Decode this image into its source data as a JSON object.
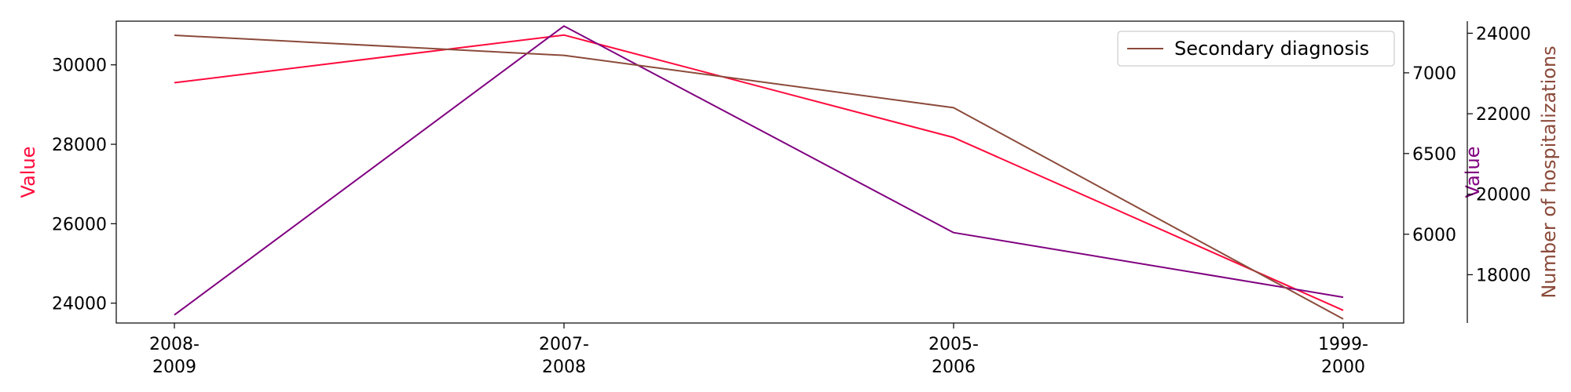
{
  "chart_data": {
    "type": "line",
    "categories": [
      [
        "2008-",
        "2009"
      ],
      [
        "2007-",
        "2008"
      ],
      [
        "2005-",
        "2006"
      ],
      [
        "1999-",
        "2000"
      ]
    ],
    "axes": {
      "left": {
        "label": "Value",
        "color": "#ff0a3c",
        "ylim": [
          23500,
          31100
        ],
        "ticks": [
          24000,
          26000,
          28000,
          30000
        ]
      },
      "right1": {
        "label": "Value",
        "color": "#800080",
        "ylim": [
          5450,
          7320
        ],
        "ticks": [
          6000,
          6500,
          7000
        ]
      },
      "right2": {
        "label": "Number of hospitalizations",
        "color": "#8b4a3a",
        "ylim": [
          16800,
          24300
        ],
        "ticks": [
          18000,
          20000,
          22000,
          24000
        ]
      }
    },
    "series": [
      {
        "axis": "left",
        "color": "#ff0a3c",
        "values": [
          29550,
          30750,
          28170,
          23820
        ]
      },
      {
        "axis": "right1",
        "color": "#800080",
        "values": [
          5500,
          7290,
          6010,
          5610
        ]
      },
      {
        "name": "Secondary diagnosis",
        "axis": "right2",
        "color": "#8b4a3a",
        "values": [
          23950,
          23450,
          22150,
          16900
        ]
      }
    ],
    "legend": {
      "position": "top-right",
      "entries": [
        "Secondary diagnosis"
      ]
    },
    "grid": false
  }
}
